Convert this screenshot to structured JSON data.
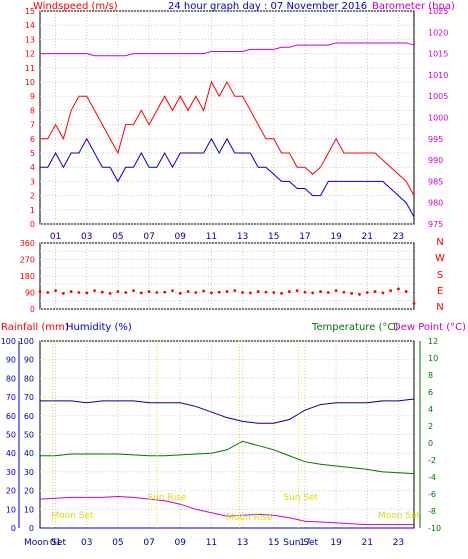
{
  "header": {
    "wind_title": "Windspeed (m/s)",
    "date_title": "24 hour graph day : 07 November 2016",
    "baro_title": "Barometer (hpa)"
  },
  "time_labels": [
    "01",
    "03",
    "05",
    "07",
    "09",
    "11",
    "13",
    "15",
    "17",
    "19",
    "21",
    "23"
  ],
  "astro": {
    "moon_set": "Moon Set",
    "sun_rise": "Sun Rise",
    "sun_set": "Sun Set",
    "moon_rise": "Moon Rise",
    "moon_set_hour": 0.8,
    "sun_rise_hour": 7.5,
    "sun_set_hour": 16.6,
    "moon_rise_hour": 12.8
  },
  "colors": {
    "gust": "#ff0000",
    "wind": "#0000cc",
    "barometer": "#cc00cc",
    "direction": "#ff0000",
    "humidity": "#000099",
    "temperature": "#007700",
    "dew_point": "#cc00cc",
    "rain_axis": "#0000cc",
    "astro": "#dddd00",
    "grid": "#cccccc"
  },
  "chart_data": [
    {
      "type": "line",
      "title": "Windspeed (m/s) / Barometer (hpa)",
      "ylabel": "Windspeed (m/s)",
      "y2label": "Barometer (hpa)",
      "ylim": [
        0,
        15
      ],
      "y2lim": [
        975,
        1025
      ],
      "yticks": [
        0,
        1,
        2,
        3,
        4,
        5,
        6,
        7,
        8,
        9,
        10,
        11,
        12,
        13,
        14,
        15
      ],
      "y2ticks": [
        975,
        980,
        985,
        990,
        995,
        1000,
        1005,
        1010,
        1015,
        1020,
        1025
      ],
      "x": [
        0,
        0.5,
        1,
        1.5,
        2,
        2.5,
        3,
        3.5,
        4,
        4.5,
        5,
        5.5,
        6,
        6.5,
        7,
        7.5,
        8,
        8.5,
        9,
        9.5,
        10,
        10.5,
        11,
        11.5,
        12,
        12.5,
        13,
        13.5,
        14,
        14.5,
        15,
        15.5,
        16,
        16.5,
        17,
        17.5,
        18,
        18.5,
        19,
        19.5,
        20,
        20.5,
        21,
        21.5,
        22,
        22.5,
        23,
        23.5,
        24
      ],
      "series": [
        {
          "name": "gust",
          "axis": "left",
          "values": [
            6,
            6,
            7,
            6,
            8,
            9,
            9,
            8,
            7,
            6,
            5,
            7,
            7,
            8,
            7,
            8,
            9,
            8,
            9,
            8,
            9,
            8,
            10,
            9,
            10,
            9,
            9,
            8,
            7,
            6,
            6,
            5,
            5,
            4,
            4,
            3.5,
            4,
            5,
            6,
            5,
            5,
            5,
            5,
            5,
            4.5,
            4,
            3.5,
            3,
            2
          ]
        },
        {
          "name": "wind",
          "axis": "left",
          "values": [
            4,
            4,
            5,
            4,
            5,
            5,
            6,
            5,
            4,
            4,
            3,
            4,
            4,
            5,
            4,
            4,
            5,
            4,
            5,
            5,
            5,
            5,
            6,
            5,
            6,
            5,
            5,
            5,
            4,
            4,
            3.5,
            3,
            3,
            2.5,
            2.5,
            2,
            2,
            3,
            3,
            3,
            3,
            3,
            3,
            3,
            3,
            2.5,
            2,
            1.5,
            0.5
          ]
        },
        {
          "name": "barometer",
          "axis": "right",
          "values": [
            1015,
            1015,
            1015,
            1015,
            1015,
            1015,
            1015,
            1014.5,
            1014.5,
            1014.5,
            1014.5,
            1014.5,
            1015,
            1015,
            1015,
            1015,
            1015,
            1015,
            1015,
            1015,
            1015,
            1015,
            1015.5,
            1015.5,
            1015.5,
            1015.5,
            1015.5,
            1016,
            1016,
            1016,
            1016,
            1016.5,
            1016.5,
            1017,
            1017,
            1017,
            1017,
            1017,
            1017.5,
            1017.5,
            1017.5,
            1017.5,
            1017.5,
            1017.5,
            1017.5,
            1017.5,
            1017.5,
            1017.5,
            1017
          ]
        }
      ]
    },
    {
      "type": "scatter",
      "title": "Wind direction",
      "ylim": [
        0,
        360
      ],
      "yticks": [
        0,
        45,
        90,
        135,
        180,
        225,
        270,
        315,
        360
      ],
      "ytick_labels": [
        "0",
        "45",
        "90",
        "135",
        "180",
        "225",
        "270",
        "315",
        "360"
      ],
      "compass_labels": [
        "N",
        "W",
        "S",
        "E",
        "N"
      ],
      "x": [
        0,
        0.5,
        1,
        1.5,
        2,
        2.5,
        3,
        3.5,
        4,
        4.5,
        5,
        5.5,
        6,
        6.5,
        7,
        7.5,
        8,
        8.5,
        9,
        9.5,
        10,
        10.5,
        11,
        11.5,
        12,
        12.5,
        13,
        13.5,
        14,
        14.5,
        15,
        15.5,
        16,
        16.5,
        17,
        17.5,
        18,
        18.5,
        19,
        19.5,
        20,
        20.5,
        21,
        21.5,
        22,
        22.5,
        23,
        23.5,
        24
      ],
      "series": [
        {
          "name": "direction",
          "values": [
            95,
            90,
            100,
            85,
            95,
            90,
            88,
            100,
            92,
            85,
            95,
            90,
            100,
            88,
            95,
            90,
            92,
            100,
            85,
            95,
            90,
            98,
            88,
            92,
            95,
            100,
            90,
            88,
            95,
            92,
            90,
            85,
            95,
            100,
            92,
            88,
            95,
            90,
            100,
            92,
            85,
            80,
            90,
            95,
            88,
            100,
            110,
            95,
            30
          ]
        }
      ]
    },
    {
      "type": "line",
      "title": "Rainfall (mm) / Humidity (%) / Temperature (°C) / Dew Point (°C)",
      "ylabel": "Rainfall (mm)",
      "y2label": "Humidity (%)",
      "y3label": "Temperature (°C)",
      "y4label": "Dew Point (°C)",
      "ylim": [
        0,
        100
      ],
      "y3lim": [
        -10,
        12
      ],
      "yticks": [
        0,
        10,
        20,
        30,
        40,
        50,
        60,
        70,
        80,
        90,
        100
      ],
      "y3ticks": [
        -10,
        -8,
        -6,
        -4,
        -2,
        0,
        2,
        4,
        6,
        8,
        10,
        12
      ],
      "x": [
        0,
        1,
        2,
        3,
        4,
        5,
        6,
        7,
        8,
        9,
        10,
        11,
        12,
        13,
        14,
        15,
        16,
        17,
        18,
        19,
        20,
        21,
        22,
        23,
        24
      ],
      "series": [
        {
          "name": "humidity",
          "axis": "left",
          "values": [
            68,
            68,
            68,
            67,
            68,
            68,
            68,
            67,
            67,
            67,
            65,
            62,
            59,
            57,
            56,
            56,
            58,
            63,
            66,
            67,
            67,
            67,
            68,
            68,
            69
          ]
        },
        {
          "name": "temperature",
          "axis": "right",
          "values": [
            -1.5,
            -1.5,
            -1.3,
            -1.3,
            -1.3,
            -1.3,
            -1.4,
            -1.5,
            -1.5,
            -1.4,
            -1.3,
            -1.2,
            -0.8,
            0.2,
            -0.3,
            -0.8,
            -1.5,
            -2.2,
            -2.5,
            -2.7,
            -2.9,
            -3.1,
            -3.4,
            -3.5,
            -3.6
          ]
        },
        {
          "name": "dew_point",
          "axis": "right",
          "values": [
            -6.6,
            -6.5,
            -6.4,
            -6.4,
            -6.4,
            -6.3,
            -6.4,
            -6.6,
            -6.8,
            -7.2,
            -7.8,
            -8.2,
            -8.6,
            -8.5,
            -8.4,
            -8.5,
            -8.8,
            -9.2,
            -9.3,
            -9.4,
            -9.5,
            -9.6,
            -9.6,
            -9.6,
            -9.6
          ]
        },
        {
          "name": "rainfall",
          "axis": "left",
          "values": [
            0,
            0,
            0,
            0,
            0,
            0,
            0,
            0,
            0,
            0,
            0,
            0,
            0,
            0,
            0,
            0,
            0,
            0,
            0,
            0,
            0,
            0,
            0,
            0,
            0
          ]
        }
      ]
    }
  ]
}
